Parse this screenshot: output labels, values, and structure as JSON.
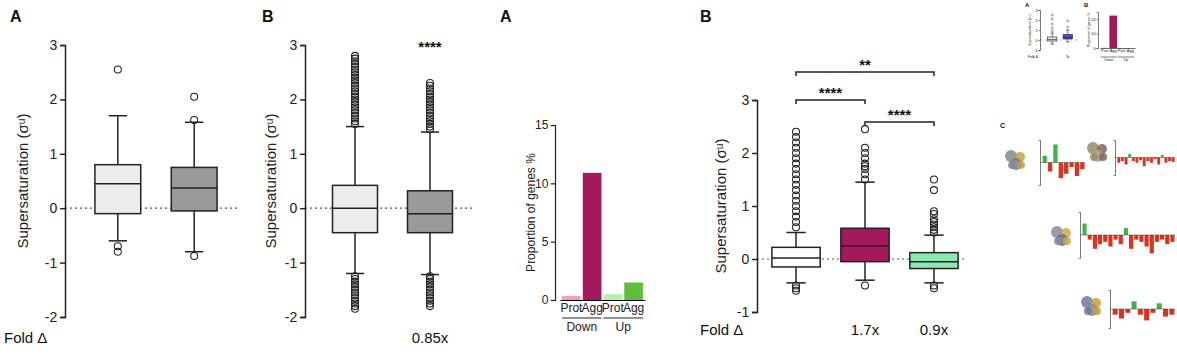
{
  "chart_data": [
    {
      "type": "box",
      "panel_label": "A",
      "y_label": "Supersaturation (σᵘ)",
      "x_label": "Fold Δ",
      "categories": [
        null,
        null
      ],
      "colors": [
        "#ececec",
        "#9a9a9a"
      ],
      "boxes": [
        {
          "min": -0.6,
          "q1": -0.1,
          "median": 0.45,
          "q3": 0.8,
          "max": 1.7,
          "outliers": [
            2.55,
            -0.7,
            -0.8
          ]
        },
        {
          "min": -0.8,
          "q1": -0.05,
          "median": 0.37,
          "q3": 0.75,
          "max": 1.58,
          "outliers": [
            2.05,
            1.62,
            -0.88
          ]
        }
      ],
      "ylim": [
        -2,
        3
      ],
      "yticks": [
        -2,
        -1,
        0,
        1,
        2,
        3
      ],
      "hlines": [
        0
      ]
    },
    {
      "type": "box",
      "panel_label": "B",
      "y_label": "Supersaturation (σᵘ)",
      "categories": [
        null,
        null
      ],
      "colors": [
        "#ececec",
        "#9a9a9a"
      ],
      "boxes": [
        {
          "min": -1.2,
          "q1": -0.45,
          "median": 0,
          "q3": 0.42,
          "max": 1.5,
          "outliers": [
            1.55,
            1.6,
            1.65,
            1.7,
            1.75,
            1.8,
            1.85,
            1.9,
            1.95,
            2.0,
            2.05,
            2.1,
            2.15,
            2.2,
            2.25,
            2.3,
            2.35,
            2.4,
            2.45,
            2.5,
            2.55,
            2.6,
            2.65,
            2.7,
            2.75,
            2.8,
            -1.25,
            -1.3,
            -1.35,
            -1.4,
            -1.45,
            -1.5,
            -1.55,
            -1.6,
            -1.65,
            -1.7,
            -1.75,
            -1.8,
            -1.85
          ]
        },
        {
          "min": -1.22,
          "q1": -0.45,
          "median": -0.1,
          "q3": 0.32,
          "max": 1.4,
          "outliers": [
            1.45,
            1.5,
            1.55,
            1.6,
            1.65,
            1.7,
            1.75,
            1.8,
            1.85,
            1.9,
            1.95,
            2.0,
            2.05,
            2.1,
            2.15,
            2.2,
            2.25,
            2.3,
            -1.25,
            -1.3,
            -1.35,
            -1.4,
            -1.45,
            -1.5,
            -1.55,
            -1.6,
            -1.65,
            -1.7,
            -1.75,
            -1.8
          ]
        }
      ],
      "ylim": [
        -2,
        3
      ],
      "yticks": [
        -2,
        -1,
        0,
        1,
        2,
        3
      ],
      "hlines": [
        0
      ],
      "significance": [
        {
          "from": 1,
          "to": 1,
          "label": "****"
        }
      ],
      "fold_labels": [
        null,
        "0.85x"
      ]
    },
    {
      "type": "bar",
      "panel_label": "A",
      "y_label": "Proportion of genes %",
      "categories": [
        "Prot",
        "Agg",
        "Prot",
        "Agg"
      ],
      "values": [
        0.35,
        10.9,
        0.5,
        1.5
      ],
      "colors": [
        "#f2a0bd",
        "#a3195b",
        "#b5f2a3",
        "#5fbf3c"
      ],
      "groups": [
        {
          "label": "Down",
          "start": 0,
          "end": 1
        },
        {
          "label": "Up",
          "start": 2,
          "end": 3
        }
      ],
      "ylim": [
        0,
        15
      ],
      "yticks": [
        0,
        5,
        10,
        15
      ]
    },
    {
      "type": "box",
      "panel_label": "B",
      "y_label": "Supersaturation (σᵘ)",
      "x_label": "Fold Δ",
      "categories": [
        null,
        null,
        null
      ],
      "colors": [
        "#ffffff",
        "#a3195b",
        "#8de8b0"
      ],
      "boxes": [
        {
          "min": -0.45,
          "q1": -0.15,
          "median": 0.02,
          "q3": 0.22,
          "max": 0.5,
          "outliers": [
            0.6,
            0.7,
            0.8,
            0.9,
            1.0,
            1.1,
            1.2,
            1.3,
            1.4,
            1.5,
            1.6,
            1.7,
            1.8,
            1.9,
            2.0,
            2.1,
            2.2,
            2.3,
            2.4,
            -0.5,
            -0.55,
            -0.6
          ]
        },
        {
          "min": -0.4,
          "q1": -0.05,
          "median": 0.25,
          "q3": 0.58,
          "max": 1.45,
          "outliers": [
            1.5,
            1.6,
            1.7,
            1.75,
            1.8,
            1.9,
            2.0,
            2.1,
            2.45,
            -0.5
          ]
        },
        {
          "min": -0.45,
          "q1": -0.18,
          "median": -0.05,
          "q3": 0.12,
          "max": 0.45,
          "outliers": [
            0.5,
            0.55,
            0.6,
            0.65,
            0.7,
            0.75,
            0.85,
            0.9,
            1.3,
            1.5,
            -0.5,
            -0.55
          ]
        }
      ],
      "ylim": [
        -1,
        3
      ],
      "yticks": [
        -1,
        0,
        1,
        2,
        3
      ],
      "hlines": [
        0
      ],
      "significance": [
        {
          "from": 0,
          "to": 2,
          "label": "**"
        },
        {
          "from": 0,
          "to": 1,
          "label": "****"
        },
        {
          "from": 1,
          "to": 2,
          "label": "****"
        }
      ],
      "fold_labels": [
        null,
        "1.7x",
        "0.9x"
      ]
    },
    {
      "type": "box",
      "panel_label": "A",
      "y_label": "Supersaturation (σᵘ)",
      "x_label": "Fold Δ",
      "categories": [
        null,
        null
      ],
      "colors": [
        "#e6e6e6",
        "#4c4cd6"
      ],
      "boxes": [
        {
          "min": -0.4,
          "q1": -0.1,
          "median": 0.05,
          "q3": 0.3,
          "max": 0.7,
          "outliers": [
            0.9,
            1.2,
            1.6,
            2.1,
            2.5
          ]
        },
        {
          "min": -0.2,
          "q1": 0.1,
          "median": 0.25,
          "q3": 0.55,
          "max": 1.0,
          "outliers": [
            1.3,
            1.9
          ]
        }
      ],
      "ylim": [
        -1,
        3
      ],
      "yticks": [
        -1,
        0,
        1,
        2,
        3
      ],
      "hlines": [
        0
      ],
      "fold_labels": [
        null,
        "2x"
      ]
    },
    {
      "type": "bar",
      "panel_label": "B",
      "y_label": "Proportion of genes %",
      "categories": [
        "Prot",
        "Agg",
        "Prot",
        "Agg"
      ],
      "values": [
        0.2,
        22.5,
        0,
        0
      ],
      "colors": [
        "#f2a0bd",
        "#a3195b",
        "#b5f2a3",
        "#5fbf3c"
      ],
      "groups": [
        {
          "label": "Down",
          "start": 0,
          "end": 1
        },
        {
          "label": "Up",
          "start": 2,
          "end": 3
        }
      ],
      "ylim": [
        0,
        25
      ],
      "yticks": [
        0,
        10,
        20
      ]
    },
    {
      "type": "bar",
      "panel_label": "C",
      "tick_labels": false,
      "categories": [
        null,
        null,
        null,
        null,
        null,
        null,
        null,
        null
      ],
      "values": [
        0.3,
        -0.4,
        0.8,
        -0.7,
        -0.5,
        -0.2,
        -0.6,
        -0.3
      ],
      "colors": [
        "#3cb44b",
        "#e0301e",
        "#3cb44b",
        "#e0301e",
        "#e0301e",
        "#e0301e",
        "#e0301e",
        "#e0301e"
      ],
      "ylim": [
        -1,
        1
      ]
    },
    {
      "type": "bar",
      "tick_labels": false,
      "categories": [
        null,
        null,
        null,
        null,
        null,
        null,
        null,
        null,
        null,
        null,
        null,
        null,
        null,
        null,
        null,
        null
      ],
      "values": [
        -0.3,
        -0.2,
        -0.4,
        0.2,
        -0.2,
        -0.3,
        -0.15,
        -0.5,
        -0.2,
        -0.3,
        -0.1,
        -0.4,
        0.15,
        -0.3,
        -0.2,
        -0.25
      ],
      "colors": [
        "#e0301e",
        "#e0301e",
        "#e0301e",
        "#3cb44b",
        "#e0301e",
        "#e0301e",
        "#e0301e",
        "#e0301e",
        "#e0301e",
        "#e0301e",
        "#e0301e",
        "#e0301e",
        "#3cb44b",
        "#e0301e",
        "#e0301e",
        "#e0301e"
      ],
      "ylim": [
        -1,
        1
      ]
    },
    {
      "type": "bar",
      "tick_labels": false,
      "categories": [
        null,
        null,
        null,
        null,
        null,
        null,
        null,
        null,
        null,
        null,
        null,
        null,
        null,
        null,
        null,
        null,
        null,
        null
      ],
      "values": [
        0.5,
        -0.2,
        -0.6,
        -0.4,
        -0.3,
        -0.5,
        -0.2,
        -0.4,
        0.3,
        -0.6,
        -0.2,
        -0.3,
        -0.5,
        -0.8,
        -0.3,
        -0.2,
        -0.4,
        -0.3
      ],
      "colors": [
        "#3cb44b",
        "#e0301e",
        "#e0301e",
        "#e0301e",
        "#e0301e",
        "#e0301e",
        "#e0301e",
        "#e0301e",
        "#3cb44b",
        "#e0301e",
        "#e0301e",
        "#e0301e",
        "#e0301e",
        "#e0301e",
        "#e0301e",
        "#e0301e",
        "#e0301e",
        "#e0301e"
      ],
      "ylim": [
        -1,
        1
      ]
    },
    {
      "type": "bar",
      "tick_labels": false,
      "categories": [
        null,
        null,
        null,
        null,
        null,
        null,
        null,
        null,
        null,
        null
      ],
      "values": [
        -0.3,
        -0.5,
        -0.2,
        0.4,
        -0.3,
        -0.6,
        -0.2,
        0.3,
        -0.4,
        -0.3
      ],
      "colors": [
        "#e0301e",
        "#e0301e",
        "#e0301e",
        "#3cb44b",
        "#e0301e",
        "#e0301e",
        "#e0301e",
        "#3cb44b",
        "#e0301e",
        "#e0301e"
      ],
      "ylim": [
        -1,
        1
      ]
    }
  ]
}
